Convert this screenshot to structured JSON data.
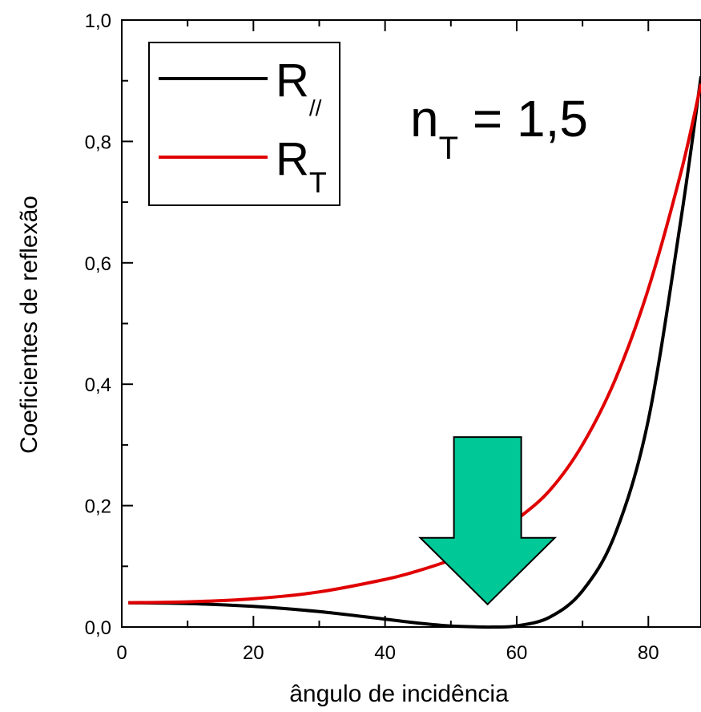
{
  "chart_data": {
    "type": "line",
    "xlabel": "ângulo de incidência",
    "ylabel": "Coeficientes de reflexão",
    "xlim": [
      0,
      88
    ],
    "ylim": [
      0,
      1.0
    ],
    "x_ticks": [
      0,
      20,
      40,
      60,
      80
    ],
    "x_tick_labels": [
      "0",
      "20",
      "40",
      "60",
      "80"
    ],
    "y_ticks": [
      0,
      0.2,
      0.4,
      0.6,
      0.8,
      1.0
    ],
    "y_tick_labels": [
      "0,0",
      "0,2",
      "0,4",
      "0,6",
      "0,8",
      "1,0"
    ],
    "grid": false,
    "legend": "top-left",
    "annotation": {
      "base": "n",
      "subscript": "T",
      "rest": " = 1,5"
    },
    "arrow": {
      "description": "green downward arrow pointing at the minimum of R//",
      "color": "#00c896",
      "x_at": 55.7
    },
    "series": [
      {
        "name": "R//",
        "name_base": "R",
        "name_sub": "//",
        "color": "#000000",
        "x": [
          1,
          10,
          20,
          30,
          40,
          45,
          50,
          55,
          56.3,
          60,
          65,
          70,
          75,
          80,
          85,
          88
        ],
        "values": [
          0.04,
          0.0386,
          0.0339,
          0.0253,
          0.0129,
          0.0065,
          0.0017,
          5e-05,
          0,
          0.0018,
          0.0161,
          0.0596,
          0.1543,
          0.3415,
          0.6754,
          0.9073
        ]
      },
      {
        "name": "RT",
        "name_base": "R",
        "name_sub": "T",
        "color": "#e00000",
        "x": [
          1,
          10,
          20,
          30,
          40,
          45,
          50,
          55,
          60,
          65,
          70,
          75,
          80,
          85,
          88
        ],
        "values": [
          0.04,
          0.0415,
          0.0466,
          0.0578,
          0.0784,
          0.0926,
          0.1106,
          0.1357,
          0.177,
          0.2248,
          0.3004,
          0.4084,
          0.5572,
          0.7511,
          0.895
        ]
      }
    ]
  }
}
